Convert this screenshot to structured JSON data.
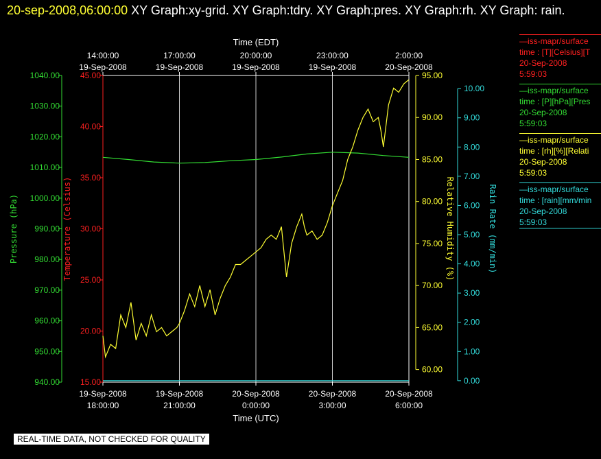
{
  "header": {
    "datetime": "20-sep-2008,06:00:00",
    "titles": "  XY Graph:xy-grid.  XY Graph:tdry.  XY Graph:pres.  XY Graph:rh.  XY Graph: rain."
  },
  "legend": [
    {
      "line1": "—iss-mapr/surface",
      "line2": "time : [T][Celsius][T",
      "line3": "20-Sep-2008",
      "line4": "5:59:03",
      "color": "#ff2020"
    },
    {
      "line1": "—iss-mapr/surface",
      "line2": "time : [P][hPa][Pres",
      "line3": "20-Sep-2008",
      "line4": "5:59:03",
      "color": "#33dd33"
    },
    {
      "line1": "—iss-mapr/surface",
      "line2": "time : [rh][%][Relati",
      "line3": "20-Sep-2008",
      "line4": "5:59:03",
      "color": "#ffff33"
    },
    {
      "line1": "—iss-mapr/surface",
      "line2": "time : [rain][mm/min",
      "line3": "20-Sep-2008",
      "line4": "5:59:03",
      "color": "#33dddd"
    }
  ],
  "disclaimer": "REAL-TIME DATA, NOT CHECKED FOR QUALITY",
  "chart_data": {
    "type": "line",
    "x_top_label": "Time (EDT)",
    "x_bottom_label": "Time (UTC)",
    "x_top_ticks": [
      {
        "time": "14:00:00",
        "date": "19-Sep-2008"
      },
      {
        "time": "17:00:00",
        "date": "19-Sep-2008"
      },
      {
        "time": "20:00:00",
        "date": "19-Sep-2008"
      },
      {
        "time": "23:00:00",
        "date": "19-Sep-2008"
      },
      {
        "time": "2:00:00",
        "date": "20-Sep-2008"
      }
    ],
    "x_bottom_ticks": [
      {
        "time": "18:00:00",
        "date": "19-Sep-2008"
      },
      {
        "time": "21:00:00",
        "date": "19-Sep-2008"
      },
      {
        "time": "0:00:00",
        "date": "20-Sep-2008"
      },
      {
        "time": "3:00:00",
        "date": "20-Sep-2008"
      },
      {
        "time": "6:00:00",
        "date": "20-Sep-2008"
      }
    ],
    "xlim_utc_hours": [
      18,
      30
    ],
    "grid": true,
    "axes": {
      "pressure": {
        "label": "Pressure (hPa)",
        "min": 940,
        "max": 1040,
        "ticks": [
          "940.00",
          "950.00",
          "960.00",
          "970.00",
          "980.00",
          "990.00",
          "1000.00",
          "1010.00",
          "1020.00",
          "1030.00",
          "1040.00"
        ],
        "color": "#33dd33"
      },
      "temperature": {
        "label": "Temperature (Celsius)",
        "min": 15,
        "max": 45,
        "ticks": [
          "15.00",
          "20.00",
          "25.00",
          "30.00",
          "35.00",
          "40.00",
          "45.00"
        ],
        "color": "#ff2020"
      },
      "rh": {
        "label": "Relative Humidity (%)",
        "min": 58.5,
        "max": 95,
        "ticks": [
          "60.00",
          "65.00",
          "70.00",
          "75.00",
          "80.00",
          "85.00",
          "90.00",
          "95.00"
        ],
        "color": "#ffff33"
      },
      "rain": {
        "label": "Rain Rate (mm/min)",
        "min": -0.05,
        "max": 10.45,
        "ticks": [
          "0.00",
          "1.00",
          "2.00",
          "3.00",
          "4.00",
          "5.00",
          "6.00",
          "7.00",
          "8.00",
          "9.00",
          "10.00"
        ],
        "color": "#33dddd"
      }
    },
    "series": [
      {
        "name": "pres",
        "axis": "pressure",
        "color": "#33dd33",
        "x": [
          18.0,
          19.0,
          20.0,
          21.0,
          22.0,
          23.0,
          24.0,
          25.0,
          26.0,
          27.0,
          28.0,
          29.0,
          30.0
        ],
        "y": [
          1013.3,
          1012.6,
          1011.8,
          1011.4,
          1011.6,
          1012.2,
          1012.6,
          1013.4,
          1014.4,
          1015.0,
          1014.7,
          1013.9,
          1013.3
        ]
      },
      {
        "name": "rh",
        "axis": "rh",
        "color": "#ffff33",
        "x": [
          18.0,
          18.1,
          18.3,
          18.5,
          18.7,
          18.9,
          19.1,
          19.3,
          19.5,
          19.7,
          19.9,
          20.1,
          20.3,
          20.5,
          20.7,
          20.9,
          21.0,
          21.2,
          21.4,
          21.6,
          21.8,
          22.0,
          22.2,
          22.4,
          22.6,
          22.8,
          23.0,
          23.2,
          23.4,
          23.6,
          23.8,
          24.0,
          24.2,
          24.4,
          24.6,
          24.8,
          25.0,
          25.2,
          25.4,
          25.6,
          25.8,
          25.9,
          26.0,
          26.2,
          26.4,
          26.6,
          26.8,
          27.0,
          27.2,
          27.4,
          27.6,
          27.8,
          28.0,
          28.2,
          28.4,
          28.6,
          28.8,
          28.9,
          29.0,
          29.2,
          29.4,
          29.6,
          29.8,
          30.0
        ],
        "y": [
          64.0,
          61.5,
          63.0,
          62.5,
          66.5,
          65.0,
          68.0,
          63.5,
          65.5,
          64.0,
          66.5,
          64.5,
          65.0,
          64.0,
          64.5,
          65.0,
          65.5,
          67.0,
          69.0,
          67.5,
          70.0,
          67.5,
          69.5,
          66.5,
          68.5,
          70.0,
          71.0,
          72.5,
          72.5,
          73.0,
          73.5,
          74.0,
          74.5,
          75.5,
          76.0,
          75.5,
          77.0,
          71.0,
          75.0,
          77.0,
          78.5,
          77.0,
          76.0,
          76.5,
          75.5,
          76.0,
          77.5,
          79.5,
          81.0,
          82.5,
          85.0,
          86.5,
          88.5,
          90.0,
          91.0,
          89.5,
          90.0,
          88.5,
          86.5,
          91.5,
          93.5,
          93.0,
          94.0,
          94.5
        ]
      },
      {
        "name": "rain",
        "axis": "rain",
        "color": "#33dddd",
        "x": [
          18.0,
          30.0
        ],
        "y": [
          0.0,
          0.0
        ]
      }
    ]
  }
}
